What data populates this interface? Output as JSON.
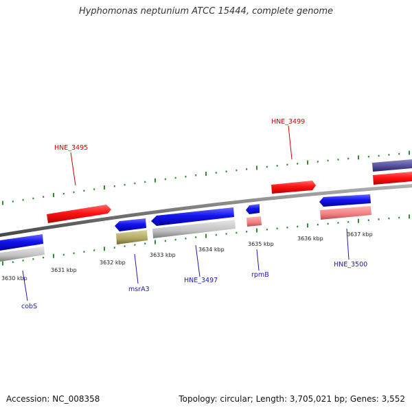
{
  "title": "Hyphomonas neptunium ATCC 15444, complete genome",
  "footer": {
    "accession": "Accession: NC_008358",
    "summary": "Topology: circular; Length: 3,705,021 bp; Genes: 3,552"
  },
  "colors": {
    "backbone": "#7a7a7a",
    "tick": "#2e8b2e",
    "forward_cds": "#ff1a1a",
    "reverse_cds": "#1f1fe0",
    "label_forward": "#cc0000",
    "label_reverse": "#1a1aa8"
  },
  "ticks": [
    "3630 kbp",
    "3631 kbp",
    "3632 kbp",
    "3633 kbp",
    "3634 kbp",
    "3635 kbp",
    "3636 kbp",
    "3637 kbp"
  ],
  "gene_labels": {
    "hne3495": "HNE_3495",
    "hne3499": "HNE_3499",
    "cobs": "cobS",
    "msra3": "msrA3",
    "hne3497": "HNE_3497",
    "rpmb": "rpmB",
    "hne3500": "HNE_3500"
  }
}
